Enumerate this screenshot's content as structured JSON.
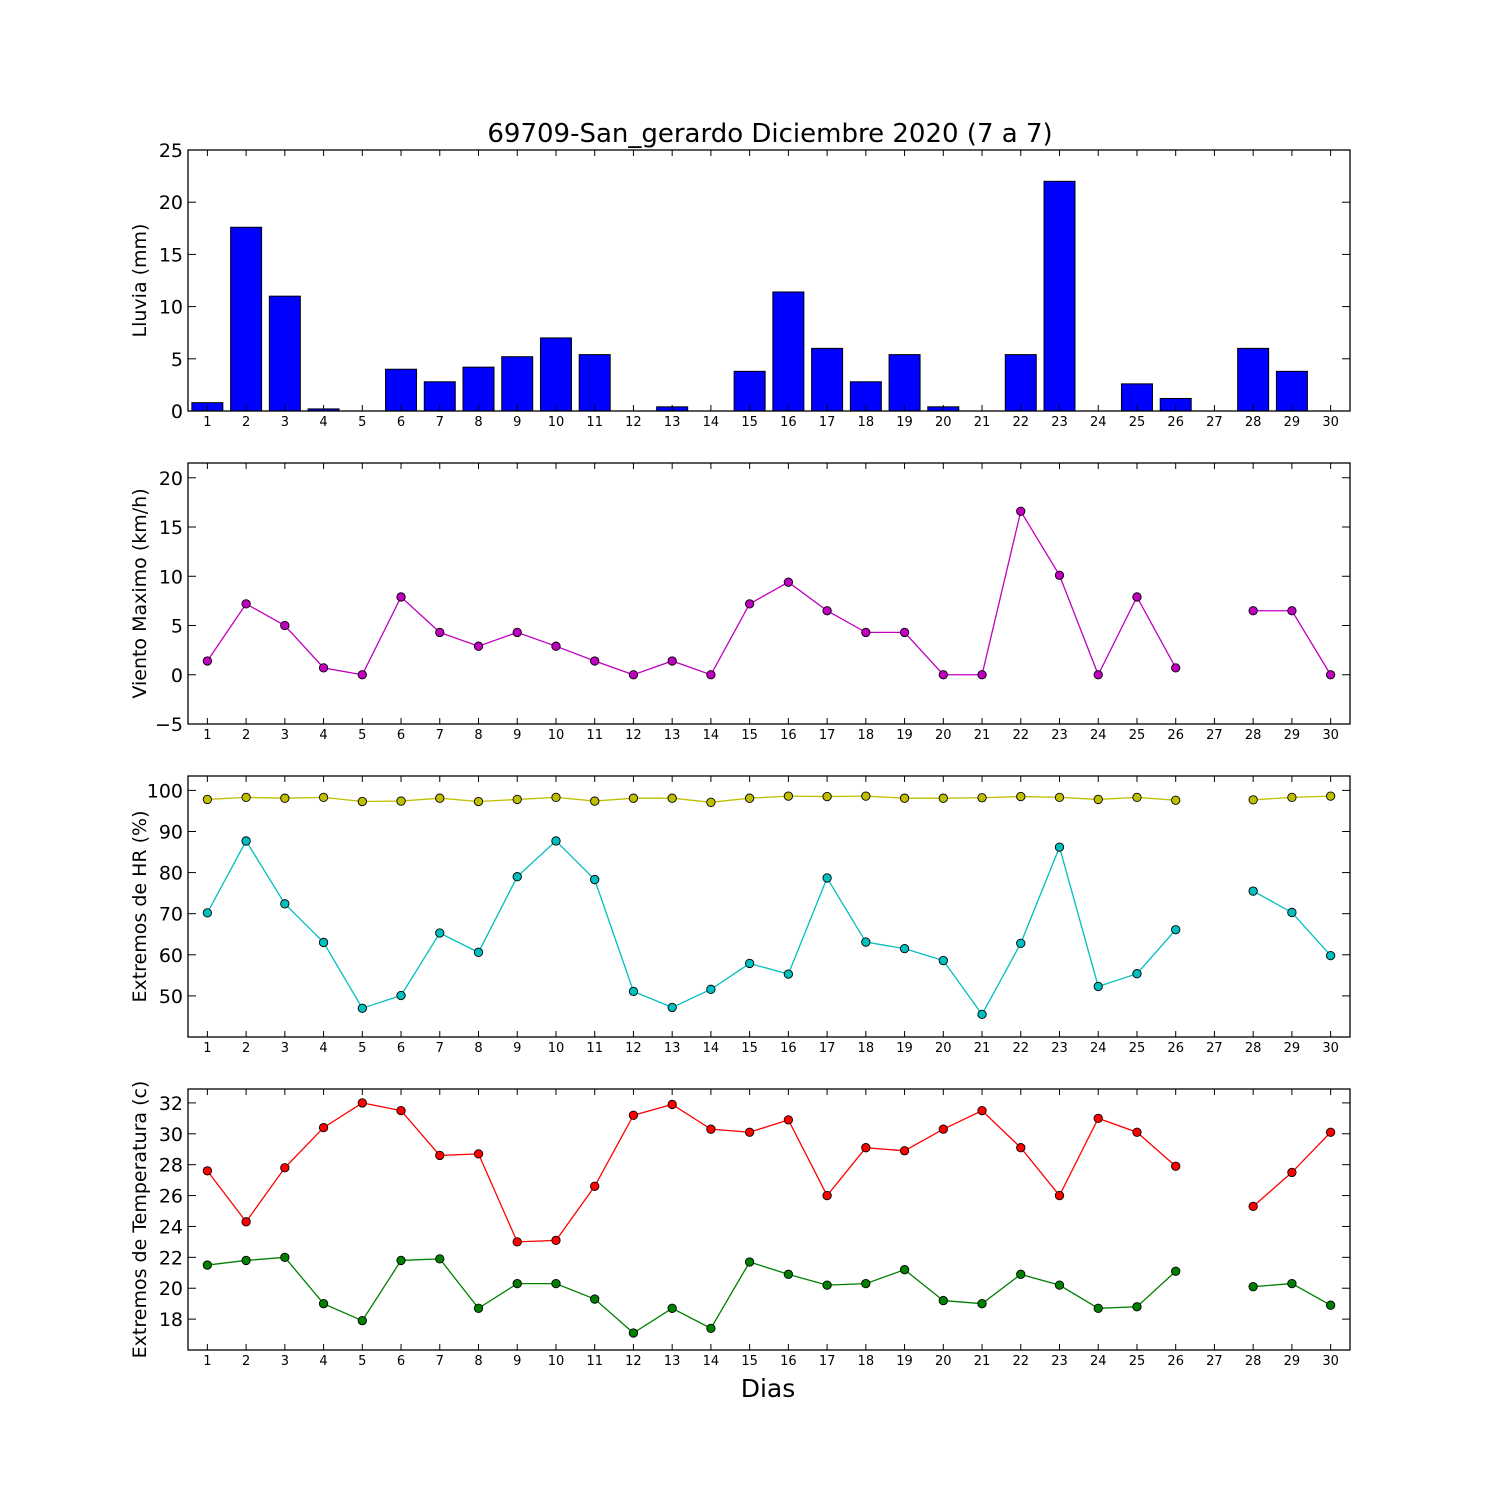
{
  "title": "69709-San_gerardo Diciembre 2020  (7 a 7)",
  "xlabel": "Dias",
  "colors": {
    "rain": "#0000ff",
    "wind": "#bf00bf",
    "hr_max": "#bfbf00",
    "hr_min": "#00bfbf",
    "temp_max": "#ff0000",
    "temp_min": "#008000"
  },
  "chart_data": [
    {
      "type": "bar",
      "ylabel": "Lluvia (mm)",
      "ylim": [
        0,
        25
      ],
      "yticks": [
        0,
        5,
        10,
        15,
        20,
        25
      ],
      "categories": [
        "1",
        "2",
        "3",
        "4",
        "5",
        "6",
        "7",
        "8",
        "9",
        "10",
        "11",
        "12",
        "13",
        "14",
        "15",
        "16",
        "17",
        "18",
        "19",
        "20",
        "21",
        "22",
        "23",
        "24",
        "25",
        "26",
        "27",
        "28",
        "29",
        "30"
      ],
      "series": [
        {
          "values": [
            0.8,
            17.6,
            11.0,
            0.2,
            0.0,
            4.0,
            2.8,
            4.2,
            5.2,
            7.0,
            5.4,
            0.0,
            0.4,
            0.0,
            3.8,
            11.4,
            6.0,
            2.8,
            5.4,
            0.4,
            0.0,
            5.4,
            22.0,
            0.0,
            2.6,
            1.2,
            0.0,
            6.0,
            3.8,
            0.0
          ]
        }
      ]
    },
    {
      "type": "line",
      "ylabel": "Viento Maximo (km/h)",
      "ylim": [
        -5,
        21.5
      ],
      "yticks": [
        -5,
        0,
        5,
        10,
        15,
        20
      ],
      "categories": [
        "1",
        "2",
        "3",
        "4",
        "5",
        "6",
        "7",
        "8",
        "9",
        "10",
        "11",
        "12",
        "13",
        "14",
        "15",
        "16",
        "17",
        "18",
        "19",
        "20",
        "21",
        "22",
        "23",
        "24",
        "25",
        "26",
        "27",
        "28",
        "29",
        "30"
      ],
      "series": [
        {
          "values": [
            1.4,
            7.2,
            5.0,
            0.7,
            0.0,
            7.9,
            4.3,
            2.9,
            4.3,
            2.9,
            1.4,
            0.0,
            1.4,
            0.0,
            7.2,
            9.4,
            6.5,
            4.3,
            4.3,
            0.0,
            0.0,
            16.6,
            10.1,
            0.0,
            7.9,
            0.7,
            null,
            6.5,
            6.5,
            0.0
          ]
        }
      ]
    },
    {
      "type": "line",
      "ylabel": "Extremos de HR (%)",
      "ylim": [
        40,
        103.5
      ],
      "yticks": [
        50,
        60,
        70,
        80,
        90,
        100
      ],
      "categories": [
        "1",
        "2",
        "3",
        "4",
        "5",
        "6",
        "7",
        "8",
        "9",
        "10",
        "11",
        "12",
        "13",
        "14",
        "15",
        "16",
        "17",
        "18",
        "19",
        "20",
        "21",
        "22",
        "23",
        "24",
        "25",
        "26",
        "27",
        "28",
        "29",
        "30"
      ],
      "series": [
        {
          "values": [
            97.8,
            98.3,
            98.1,
            98.3,
            97.3,
            97.4,
            98.1,
            97.3,
            97.8,
            98.3,
            97.4,
            98.1,
            98.1,
            97.1,
            98.1,
            98.6,
            98.5,
            98.6,
            98.1,
            98.1,
            98.2,
            98.5,
            98.3,
            97.8,
            98.3,
            97.6,
            null,
            97.7,
            98.3,
            98.6
          ]
        },
        {
          "values": [
            70.2,
            87.7,
            72.4,
            63.0,
            47.0,
            50.1,
            65.3,
            60.6,
            79.0,
            87.7,
            78.3,
            51.1,
            47.2,
            51.6,
            57.9,
            55.3,
            78.7,
            63.1,
            61.5,
            58.6,
            45.5,
            62.8,
            86.2,
            52.3,
            55.4,
            66.1,
            null,
            75.5,
            70.3,
            59.8
          ]
        }
      ]
    },
    {
      "type": "line",
      "ylabel": "Extremos de Temperatura (c)",
      "ylim": [
        16,
        32.9
      ],
      "yticks": [
        18,
        20,
        22,
        24,
        26,
        28,
        30,
        32
      ],
      "categories": [
        "1",
        "2",
        "3",
        "4",
        "5",
        "6",
        "7",
        "8",
        "9",
        "10",
        "11",
        "12",
        "13",
        "14",
        "15",
        "16",
        "17",
        "18",
        "19",
        "20",
        "21",
        "22",
        "23",
        "24",
        "25",
        "26",
        "27",
        "28",
        "29",
        "30"
      ],
      "series": [
        {
          "values": [
            27.6,
            24.3,
            27.8,
            30.4,
            32.0,
            31.5,
            28.6,
            28.7,
            23.0,
            23.1,
            26.6,
            31.2,
            31.9,
            30.3,
            30.1,
            30.9,
            26.0,
            29.1,
            28.9,
            30.3,
            31.5,
            29.1,
            26.0,
            31.0,
            30.1,
            27.9,
            null,
            25.3,
            27.5,
            30.1
          ]
        },
        {
          "values": [
            21.5,
            21.8,
            22.0,
            19.0,
            17.9,
            21.8,
            21.9,
            18.7,
            20.3,
            20.3,
            19.3,
            17.1,
            18.7,
            17.4,
            21.7,
            20.9,
            20.2,
            20.3,
            21.2,
            19.2,
            19.0,
            20.9,
            20.2,
            18.7,
            18.8,
            21.1,
            null,
            20.1,
            20.3,
            18.9
          ]
        }
      ]
    }
  ]
}
